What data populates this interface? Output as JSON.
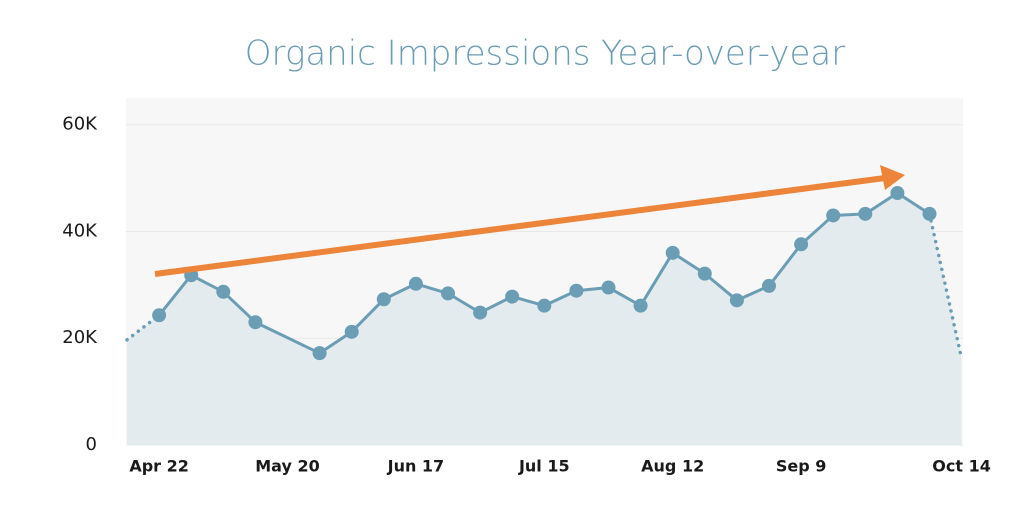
{
  "chart_data": {
    "type": "line",
    "title": "Organic Impressions Year-over-year",
    "categories": [
      null,
      "Apr 22",
      null,
      null,
      null,
      "May 20",
      null,
      null,
      null,
      "Jun 17",
      null,
      null,
      null,
      "Jul 15",
      null,
      null,
      null,
      "Aug 12",
      null,
      null,
      null,
      "Sep 9",
      null,
      null,
      null,
      null,
      "Oct 14"
    ],
    "series": [
      {
        "name": "Organic Impressions",
        "color": "#6b9db5",
        "values": [
          19700,
          24300,
          31800,
          28700,
          23000,
          null,
          17200,
          21200,
          27300,
          30200,
          28400,
          24800,
          27800,
          26100,
          28900,
          29500,
          26100,
          36000,
          32100,
          27100,
          29800,
          37600,
          43000,
          43300,
          47200,
          43300,
          16200
        ]
      }
    ],
    "area_color": "#e3ebef",
    "connect_gaps": true,
    "dotted_ends": true,
    "ylim": [
      0,
      65000
    ],
    "yticks": [
      0,
      {
        "value": 20000,
        "label": "20K"
      },
      {
        "value": 40000,
        "label": "40K"
      },
      {
        "value": 60000,
        "label": "60K"
      }
    ],
    "grid": true
  }
}
